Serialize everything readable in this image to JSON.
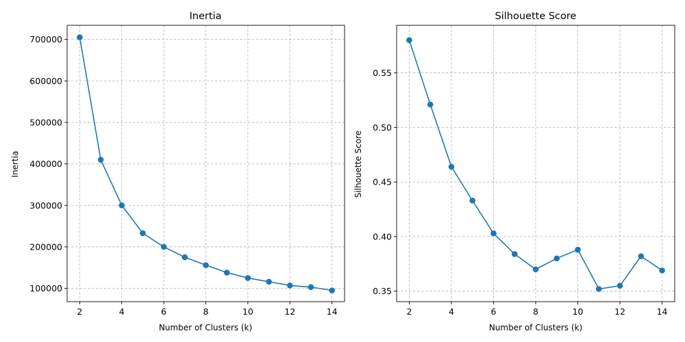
{
  "figure": {
    "colors": {
      "series": "#1f77b4",
      "grid": "#b0b0b0"
    }
  },
  "chart_data": [
    {
      "type": "line",
      "title": "Inertia",
      "xlabel": "Number of Clusters (k)",
      "ylabel": "Inertia",
      "xlim": [
        1.4,
        14.6
      ],
      "ylim": [
        68000,
        734000
      ],
      "xticks": [
        2,
        4,
        6,
        8,
        10,
        12,
        14
      ],
      "yticks": [
        100000,
        200000,
        300000,
        400000,
        500000,
        600000,
        700000
      ],
      "grid": true,
      "marker": "circle",
      "series": [
        {
          "x": [
            2,
            3,
            4,
            5,
            6,
            7,
            8,
            9,
            10,
            11,
            12,
            13,
            14
          ],
          "values": [
            705000,
            410000,
            300000,
            233000,
            200000,
            175000,
            156000,
            138000,
            125000,
            116000,
            107000,
            103000,
            95000
          ]
        }
      ]
    },
    {
      "type": "line",
      "title": "Silhouette Score",
      "xlabel": "Number of Clusters (k)",
      "ylabel": "Silhouette Score",
      "xlim": [
        1.4,
        14.6
      ],
      "ylim": [
        0.3404,
        0.5936
      ],
      "xticks": [
        2,
        4,
        6,
        8,
        10,
        12,
        14
      ],
      "yticks": [
        0.35,
        0.4,
        0.45,
        0.5,
        0.55
      ],
      "yticklabels": [
        "0.35",
        "0.40",
        "0.45",
        "0.50",
        "0.55"
      ],
      "grid": true,
      "marker": "circle",
      "series": [
        {
          "x": [
            2,
            3,
            4,
            5,
            6,
            7,
            8,
            9,
            10,
            11,
            12,
            13,
            14
          ],
          "values": [
            0.58,
            0.521,
            0.464,
            0.433,
            0.403,
            0.384,
            0.37,
            0.38,
            0.388,
            0.352,
            0.355,
            0.382,
            0.369
          ]
        }
      ]
    }
  ]
}
